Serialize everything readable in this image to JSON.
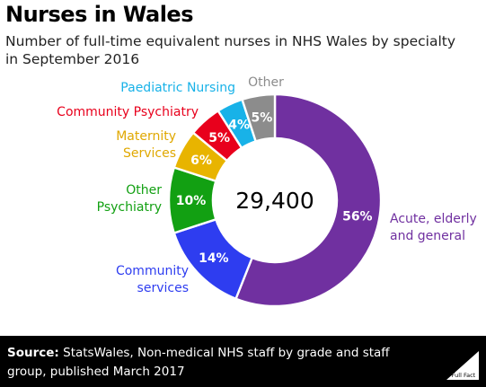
{
  "title": "Nurses in Wales",
  "subtitle": "Number of full-time equivalent nurses in NHS Wales by specialty in September 2016",
  "footer": {
    "source_label": "Source:",
    "source_text": " StatsWales, Non-medical NHS staff by grade and staff group, published March 2017",
    "logo_text": "Full Fact"
  },
  "chart_data": {
    "type": "pie",
    "donut": true,
    "center_label": "29,400",
    "slices": [
      {
        "label": [
          "Acute, elderly",
          "and general"
        ],
        "pct_label": "56%",
        "value": 56,
        "color": "#7030a0",
        "label_color": "#7030a0"
      },
      {
        "label": [
          "Community",
          "services"
        ],
        "pct_label": "14%",
        "value": 14,
        "color": "#2e3df0",
        "label_color": "#2e3df0"
      },
      {
        "label": [
          "Other",
          "Psychiatry"
        ],
        "pct_label": "10%",
        "value": 10,
        "color": "#12a012",
        "label_color": "#12a012"
      },
      {
        "label": [
          "Maternity",
          "Services"
        ],
        "pct_label": "6%",
        "value": 6,
        "color": "#e8b400",
        "label_color": "#e0a800"
      },
      {
        "label": [
          "Community Psychiatry"
        ],
        "pct_label": "5%",
        "value": 5,
        "color": "#e8001c",
        "label_color": "#e8001c"
      },
      {
        "label": [
          "Paediatric Nursing"
        ],
        "pct_label": "4%",
        "value": 4,
        "color": "#18b2e8",
        "label_color": "#18b2e8"
      },
      {
        "label": [
          "Other"
        ],
        "pct_label": "5%",
        "value": 5,
        "color": "#8c8c8c",
        "label_color": "#8c8c8c"
      }
    ]
  }
}
